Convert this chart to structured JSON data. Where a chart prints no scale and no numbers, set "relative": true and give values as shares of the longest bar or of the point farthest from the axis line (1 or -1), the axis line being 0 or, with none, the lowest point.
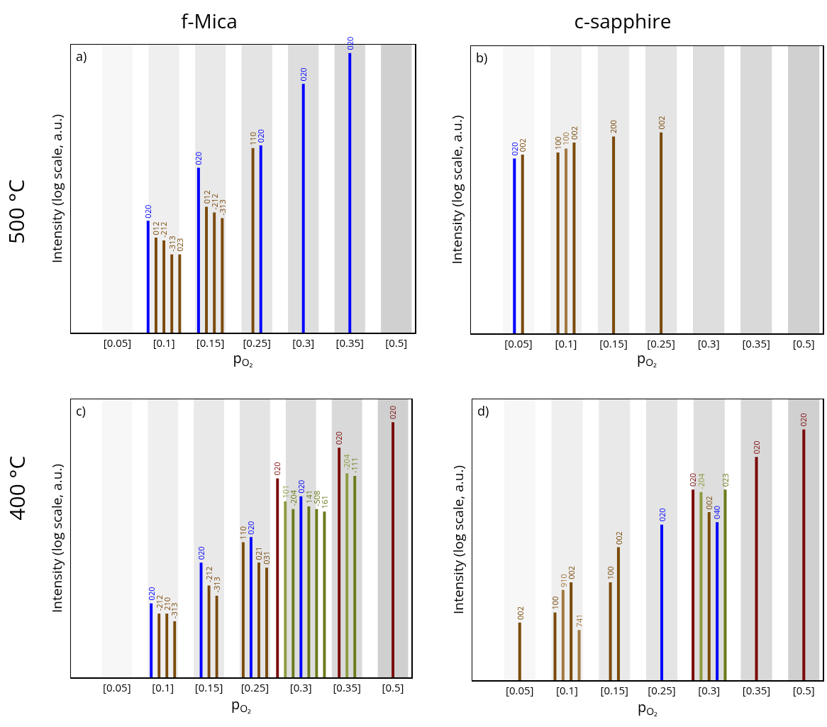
{
  "chart_data": [
    {
      "type": "bar",
      "title": "f-Mica",
      "xlabel": "p$_{O₂}$",
      "ylabel": "Intensity (log scale, a.u.)",
      "relative": true,
      "ylim": [
        0,
        1.03
      ],
      "categories": [
        "[0.05]",
        "[0.1]",
        "[0.15]",
        "[0.25]",
        "[0.3]",
        "[0.35]",
        "[0.5]"
      ],
      "annotations": [
        "020",
        "012",
        "-212",
        "-313",
        "023",
        "020",
        "012",
        "-212",
        "-313",
        "110",
        "020",
        "020",
        "020",
        "a)",
        "500 °C"
      ],
      "bands": [
        {
          "axis": "x",
          "from": "[0.05]",
          "to": "[0.05]",
          "color": "#f7f7f7"
        },
        {
          "axis": "x",
          "from": "[0.1]",
          "to": "[0.1]",
          "color": "#efefef"
        },
        {
          "axis": "x",
          "from": "[0.15]",
          "to": "[0.15]",
          "color": "#e9e9e9"
        },
        {
          "axis": "x",
          "from": "[0.25]",
          "to": "[0.25]",
          "color": "#e4e4e4"
        },
        {
          "axis": "x",
          "from": "[0.3]",
          "to": "[0.3]",
          "color": "#dedede"
        },
        {
          "axis": "x",
          "from": "[0.35]",
          "to": "[0.35]",
          "color": "#d9d9d9"
        },
        {
          "axis": "x",
          "from": "[0.5]",
          "to": "[0.5]",
          "color": "#d0d0d0"
        }
      ],
      "series": [
        {
          "values": [
            null,
            0.4,
            0.59,
            0.66,
            0.89,
            1,
            null
          ],
          "colors": [
            null,
            "#0000ff",
            "#0000ff",
            "#7b4a0b",
            "#0000ff",
            "#0000ff",
            null
          ]
        },
        {
          "values": [
            null,
            0.34,
            0.45,
            0.67,
            null,
            null,
            null
          ],
          "colors": [
            null,
            "#7b4a0b",
            "#7b4a0b",
            "#0000ff",
            null,
            null,
            null
          ]
        },
        {
          "values": [
            null,
            0.33,
            0.43,
            null,
            null,
            null,
            null
          ],
          "colors": [
            null,
            "#7b4a0b",
            "#7b4a0b",
            null,
            null,
            null,
            null
          ]
        },
        {
          "values": [
            null,
            0.28,
            0.41,
            null,
            null,
            null,
            null
          ],
          "colors": [
            null,
            "#7b4a0b",
            "#7b4a0b",
            null,
            null,
            null,
            null
          ]
        },
        {
          "values": [
            null,
            0.28,
            null,
            null,
            null,
            null,
            null
          ],
          "colors": [
            null,
            "#7b4a0b",
            null,
            null,
            null,
            null,
            null
          ]
        }
      ]
    },
    {
      "type": "bar",
      "title": "c-sapphire",
      "xlabel": "p$_{O₂}$",
      "ylabel": "Intensity (log scale, a.u.)",
      "relative": true,
      "ylim": [
        0,
        1.43
      ],
      "categories": [
        "[0.05]",
        "[0.1]",
        "[0.15]",
        "[0.25]",
        "[0.3]",
        "[0.35]",
        "[0.5]"
      ],
      "annotations": [
        "020",
        "002",
        "100",
        "100",
        "002",
        "200",
        "002",
        "b)"
      ],
      "bands": [
        {
          "axis": "x",
          "from": "[0.05]",
          "to": "[0.05]",
          "color": "#f7f7f7"
        },
        {
          "axis": "x",
          "from": "[0.1]",
          "to": "[0.1]",
          "color": "#efefef"
        },
        {
          "axis": "x",
          "from": "[0.15]",
          "to": "[0.15]",
          "color": "#e9e9e9"
        },
        {
          "axis": "x",
          "from": "[0.25]",
          "to": "[0.25]",
          "color": "#e4e4e4"
        },
        {
          "axis": "x",
          "from": "[0.3]",
          "to": "[0.3]",
          "color": "#dedede"
        },
        {
          "axis": "x",
          "from": "[0.35]",
          "to": "[0.35]",
          "color": "#d9d9d9"
        },
        {
          "axis": "x",
          "from": "[0.5]",
          "to": "[0.5]",
          "color": "#d0d0d0"
        }
      ],
      "series": [
        {
          "values": [
            0.87,
            0.9,
            0.98,
            1,
            null,
            null,
            null
          ],
          "colors": [
            "#0000ff",
            "#7b4a0b",
            "#7b4a0b",
            "#7b4a0b",
            null,
            null,
            null
          ]
        },
        {
          "values": [
            0.89,
            0.92,
            null,
            null,
            null,
            null,
            null
          ],
          "colors": [
            "#7b4a0b",
            "#a07840",
            null,
            null,
            null,
            null,
            null
          ]
        },
        {
          "values": [
            null,
            0.95,
            null,
            null,
            null,
            null,
            null
          ],
          "colors": [
            null,
            "#7b4a0b",
            null,
            null,
            null,
            null,
            null
          ]
        }
      ]
    },
    {
      "type": "bar",
      "xlabel": "p$_{O₂}$",
      "ylabel": "Intensity (log scale, a.u.)",
      "relative": true,
      "ylim": [
        0,
        1.09
      ],
      "categories": [
        "[0.05]",
        "[0.1]",
        "[0.15]",
        "[0.25]",
        "[0.3]",
        "[0.35]",
        "[0.5]"
      ],
      "annotations": [
        "020",
        "-212",
        "210",
        "-313",
        "020",
        "-212",
        "-313",
        "110",
        "020",
        "021",
        "031",
        "020",
        "101",
        "-204",
        "020",
        "141",
        "-508",
        "161",
        "020",
        "-204",
        "-111",
        "020",
        "c)",
        "400 °C"
      ],
      "bands": [
        {
          "axis": "x",
          "from": "[0.05]",
          "to": "[0.05]",
          "color": "#f7f7f7"
        },
        {
          "axis": "x",
          "from": "[0.1]",
          "to": "[0.1]",
          "color": "#efefef"
        },
        {
          "axis": "x",
          "from": "[0.15]",
          "to": "[0.15]",
          "color": "#e9e9e9"
        },
        {
          "axis": "x",
          "from": "[0.25]",
          "to": "[0.25]",
          "color": "#e4e4e4"
        },
        {
          "axis": "x",
          "from": "[0.3]",
          "to": "[0.3]",
          "color": "#dedede"
        },
        {
          "axis": "x",
          "from": "[0.35]",
          "to": "[0.35]",
          "color": "#d9d9d9"
        },
        {
          "axis": "x",
          "from": "[0.5]",
          "to": "[0.5]",
          "color": "#d0d0d0"
        }
      ],
      "series": [
        {
          "values": [
            null,
            0.29,
            0.45,
            0.53,
            0.78,
            0.9,
            1
          ],
          "colors": [
            null,
            "#0000ff",
            "#0000ff",
            "#7b4a0b",
            "#7b0a0a",
            "#7b0a0a",
            "#7b0a0a"
          ]
        },
        {
          "values": [
            null,
            0.25,
            0.36,
            0.55,
            0.69,
            0.8,
            null
          ],
          "colors": [
            null,
            "#7b4a0b",
            "#7b4a0b",
            "#0000ff",
            "#8f9a40",
            "#8f9a40",
            null
          ]
        },
        {
          "values": [
            null,
            0.25,
            0.32,
            0.45,
            0.66,
            0.79,
            null
          ],
          "colors": [
            null,
            "#7b4a0b",
            "#7b4a0b",
            "#7b4a0b",
            "#6b7a1a",
            "#6b7a1a",
            null
          ]
        },
        {
          "values": [
            null,
            0.22,
            null,
            0.43,
            0.71,
            null,
            null
          ],
          "colors": [
            null,
            "#7b4a0b",
            null,
            "#7b4a0b",
            "#0000ff",
            null,
            null
          ]
        },
        {
          "values": [
            null,
            null,
            null,
            null,
            0.67,
            null,
            null
          ],
          "colors": [
            null,
            null,
            null,
            null,
            "#6b7a1a",
            null,
            null
          ]
        },
        {
          "values": [
            null,
            null,
            null,
            null,
            0.66,
            null,
            null
          ],
          "colors": [
            null,
            null,
            null,
            null,
            "#6b7a1a",
            null,
            null
          ]
        },
        {
          "values": [
            null,
            null,
            null,
            null,
            0.65,
            null,
            null
          ],
          "colors": [
            null,
            null,
            null,
            null,
            "#6b7a1a",
            null,
            null
          ]
        }
      ]
    },
    {
      "type": "bar",
      "xlabel": "p$_{O₂}$",
      "ylabel": "Intensity (log scale, a.u.)",
      "relative": true,
      "ylim": [
        0,
        1.12
      ],
      "categories": [
        "[0.05]",
        "[0.1]",
        "[0.15]",
        "[0.25]",
        "[0.3]",
        "[0.35]",
        "[0.5]"
      ],
      "annotations": [
        "002",
        "100",
        "910",
        "002",
        "741",
        "100",
        "002",
        "020",
        "020",
        "-204",
        "002",
        "040",
        "023",
        "020",
        "020",
        "d)"
      ],
      "bands": [
        {
          "axis": "x",
          "from": "[0.05]",
          "to": "[0.05]",
          "color": "#f7f7f7"
        },
        {
          "axis": "x",
          "from": "[0.1]",
          "to": "[0.1]",
          "color": "#efefef"
        },
        {
          "axis": "x",
          "from": "[0.15]",
          "to": "[0.15]",
          "color": "#e9e9e9"
        },
        {
          "axis": "x",
          "from": "[0.25]",
          "to": "[0.25]",
          "color": "#e4e4e4"
        },
        {
          "axis": "x",
          "from": "[0.3]",
          "to": "[0.3]",
          "color": "#dedede"
        },
        {
          "axis": "x",
          "from": "[0.35]",
          "to": "[0.35]",
          "color": "#d9d9d9"
        },
        {
          "axis": "x",
          "from": "[0.5]",
          "to": "[0.5]",
          "color": "#d0d0d0"
        }
      ],
      "series": [
        {
          "values": [
            0.23,
            0.27,
            0.39,
            0.62,
            0.76,
            0.89,
            1
          ],
          "colors": [
            "#7b4a0b",
            "#7b4a0b",
            "#7b4a0b",
            "#0000ff",
            "#7b0a0a",
            "#7b0a0a",
            "#7b0a0a"
          ]
        },
        {
          "values": [
            null,
            0.36,
            0.53,
            null,
            0.75,
            null,
            null
          ],
          "colors": [
            null,
            "#a07840",
            "#7b4a0b",
            null,
            "#8f9a40",
            null,
            null
          ]
        },
        {
          "values": [
            null,
            0.39,
            null,
            null,
            0.67,
            null,
            null
          ],
          "colors": [
            null,
            "#7b4a0b",
            null,
            null,
            "#7b4a0b",
            null,
            null
          ]
        },
        {
          "values": [
            null,
            0.2,
            null,
            null,
            0.63,
            null,
            null
          ],
          "colors": [
            null,
            "#a07840",
            null,
            null,
            "#0000ff",
            null,
            null
          ]
        },
        {
          "values": [
            null,
            null,
            null,
            null,
            0.76,
            null,
            null
          ],
          "colors": [
            null,
            null,
            null,
            null,
            "#6b7a1a",
            null,
            null
          ]
        }
      ]
    }
  ]
}
